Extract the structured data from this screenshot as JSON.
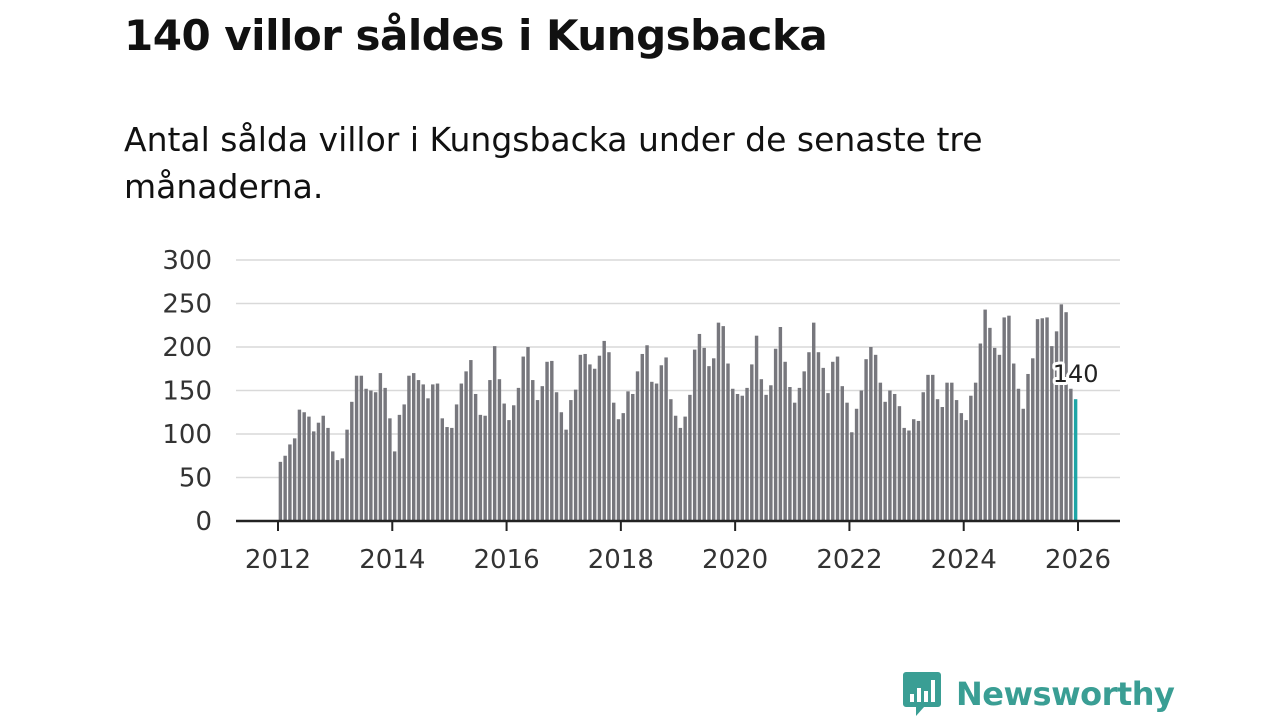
{
  "title": "140 villor såldes i Kungsbacka",
  "subtitle": "Antal sålda villor i Kungsbacka under de senaste tre månaderna.",
  "brand": "Newsworthy",
  "colors": {
    "bar": "#77777d",
    "highlight": "#1ea5a6",
    "grid": "#d9d9d9",
    "axis": "#222222",
    "brand": "#3a9e94"
  },
  "chart_data": {
    "type": "bar",
    "title": "140 villor såldes i Kungsbacka",
    "xlabel": "",
    "ylabel": "",
    "ylim": [
      0,
      300
    ],
    "y_ticks": [
      0,
      50,
      100,
      150,
      200,
      250,
      300
    ],
    "x_ticks": [
      "2012",
      "2014",
      "2016",
      "2018",
      "2020",
      "2022",
      "2024",
      "2026"
    ],
    "x_range": [
      2012,
      2026
    ],
    "grid": true,
    "start_year": 2012,
    "start_month": 1,
    "values": [
      68,
      75,
      88,
      95,
      128,
      125,
      120,
      103,
      113,
      121,
      107,
      80,
      70,
      72,
      105,
      137,
      167,
      167,
      152,
      150,
      148,
      170,
      153,
      118,
      80,
      122,
      134,
      167,
      170,
      162,
      157,
      141,
      157,
      158,
      118,
      108,
      107,
      134,
      158,
      172,
      185,
      146,
      122,
      121,
      162,
      201,
      163,
      135,
      116,
      133,
      153,
      189,
      200,
      162,
      139,
      155,
      183,
      184,
      148,
      125,
      105,
      139,
      151,
      191,
      192,
      180,
      175,
      190,
      207,
      194,
      136,
      117,
      124,
      149,
      146,
      172,
      192,
      202,
      160,
      158,
      179,
      188,
      140,
      121,
      107,
      120,
      145,
      197,
      215,
      199,
      178,
      187,
      228,
      224,
      181,
      152,
      146,
      144,
      153,
      180,
      213,
      163,
      145,
      156,
      198,
      223,
      183,
      154,
      136,
      153,
      172,
      194,
      228,
      194,
      176,
      147,
      183,
      189,
      155,
      136,
      102,
      129,
      150,
      186,
      200,
      191,
      159,
      137,
      150,
      146,
      132,
      107,
      104,
      117,
      115,
      148,
      168,
      168,
      140,
      131,
      159,
      159,
      139,
      124,
      116,
      144,
      159,
      204,
      243,
      222,
      199,
      191,
      234,
      236,
      181,
      152,
      129,
      169,
      187,
      232,
      233,
      234,
      201,
      218,
      249,
      240,
      152,
      140
    ],
    "highlight_last": 3,
    "annotation": {
      "label": "140",
      "value": 140
    }
  }
}
